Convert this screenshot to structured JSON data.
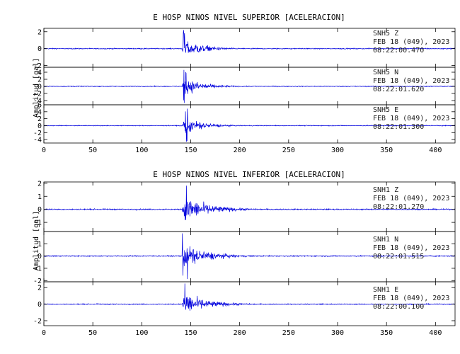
{
  "chart_data": [
    {
      "type": "line",
      "title": "E HOSP NINOS NIVEL SUPERIOR [ACELERACION]",
      "xlabel": "",
      "ylabel": "Amplitud [gal]",
      "xlim": [
        0,
        420
      ],
      "x_ticks": [
        0,
        50,
        100,
        150,
        200,
        250,
        300,
        350,
        400
      ],
      "grid": false,
      "series": [
        {
          "name": "SNH5 Z",
          "station": "SNH5",
          "component": "Z",
          "date": "FEB 18 (049), 2023",
          "time": "08:22:00.470",
          "ylim": [
            -2.2,
            2.4
          ],
          "y_ticks": [
            -2,
            0,
            2
          ],
          "color": "#0000dd",
          "noise_level": 0.05,
          "event_onset": 141,
          "peak_amplitude": 2.4,
          "decay_end": 200
        },
        {
          "name": "SNH5 N",
          "station": "SNH5",
          "component": "N",
          "date": "FEB 18 (049), 2023",
          "time": "08:22:01.620",
          "ylim": [
            -5.2,
            5.4
          ],
          "y_ticks": [
            -4,
            -2,
            0,
            2,
            4
          ],
          "color": "#0000dd",
          "noise_level": 0.1,
          "event_onset": 141,
          "peak_amplitude": 5.0,
          "decay_end": 200
        },
        {
          "name": "SNH5 E",
          "station": "SNH5",
          "component": "E",
          "date": "FEB 18 (049), 2023",
          "time": "08:22:01.300",
          "ylim": [
            -5,
            6
          ],
          "y_ticks": [
            -4,
            -2,
            0,
            2,
            4,
            6
          ],
          "color": "#0000dd",
          "noise_level": 0.1,
          "event_onset": 141,
          "peak_amplitude": 5.0,
          "decay_end": 200
        }
      ]
    },
    {
      "type": "line",
      "title": "E HOSP NINOS NIVEL INFERIOR [ACELERACION]",
      "xlabel": "",
      "ylabel": "Amplitud [gal]",
      "xlim": [
        0,
        420
      ],
      "x_ticks": [
        0,
        50,
        100,
        150,
        200,
        250,
        300,
        350,
        400
      ],
      "grid": false,
      "series": [
        {
          "name": "SNH1 Z",
          "station": "SNH1",
          "component": "Z",
          "date": "FEB 18 (049), 2023",
          "time": "08:22:01.270",
          "ylim": [
            -1.7,
            2.1
          ],
          "y_ticks": [
            -1,
            0,
            1,
            2
          ],
          "color": "#0000dd",
          "noise_level": 0.04,
          "event_onset": 141,
          "peak_amplitude": 1.9,
          "decay_end": 220
        },
        {
          "name": "SNH1 N",
          "station": "SNH1",
          "component": "N",
          "date": "FEB 18 (049), 2023",
          "time": "08:22:01.515",
          "ylim": [
            -2.1,
            2.0
          ],
          "y_ticks": [
            -2,
            -1,
            0,
            1
          ],
          "color": "#0000dd",
          "noise_level": 0.04,
          "event_onset": 141,
          "peak_amplitude": 1.9,
          "decay_end": 215
        },
        {
          "name": "SNH1 E",
          "station": "SNH1",
          "component": "E",
          "date": "FEB 18 (049), 2023",
          "time": "08:22:00.100",
          "ylim": [
            -2.6,
            2.7
          ],
          "y_ticks": [
            -2,
            0,
            2
          ],
          "color": "#0000dd",
          "noise_level": 0.05,
          "event_onset": 141,
          "peak_amplitude": 2.5,
          "decay_end": 215
        }
      ]
    }
  ]
}
